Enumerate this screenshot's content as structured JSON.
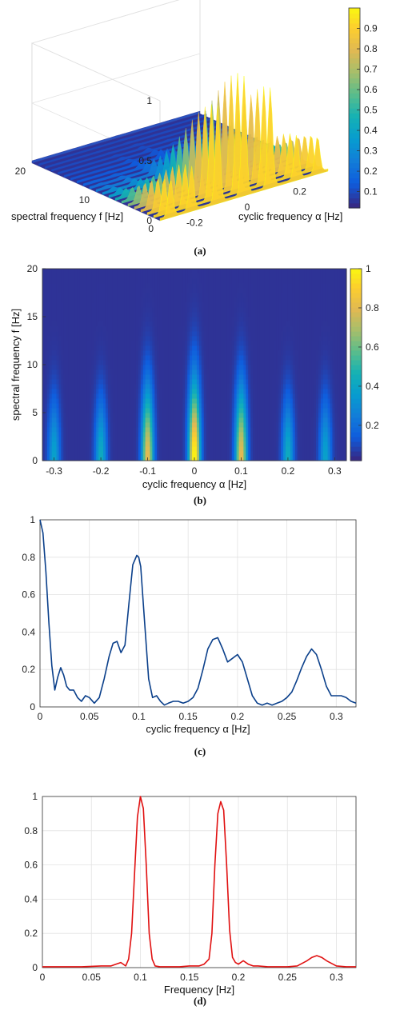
{
  "colors": {
    "curve_c": "#0a3f8a",
    "curve_d": "#e01010",
    "grid": "#e2e2e2",
    "axis": "#333333",
    "parula_low": "#352a87",
    "parula_high": "#f9fb0e"
  },
  "chart_data": [
    {
      "id": "a",
      "type": "surface",
      "caption": "(a)",
      "xlabel": "cyclic frequency α [Hz]",
      "ylabel": "spectral frequency f [Hz]",
      "x_ticks": [
        "-0.2",
        "0",
        "0.2"
      ],
      "y_ticks": [
        "0",
        "10",
        "20"
      ],
      "z_ticks": [
        "0",
        "0.5",
        "1"
      ],
      "xlim": [
        -0.32,
        0.32
      ],
      "ylim": [
        0,
        20
      ],
      "zlim": [
        0,
        1
      ],
      "colorbar_ticks": [
        "0.1",
        "0.2",
        "0.3",
        "0.4",
        "0.5",
        "0.6",
        "0.7",
        "0.8",
        "0.9"
      ],
      "colorbar_range": [
        0.02,
        1.0
      ],
      "ridges": [
        {
          "alpha": -0.28,
          "peak": 0.3,
          "f_extent": 10
        },
        {
          "alpha": -0.2,
          "peak": 0.36,
          "f_extent": 11
        },
        {
          "alpha": -0.1,
          "peak": 0.8,
          "f_extent": 13
        },
        {
          "alpha": 0.0,
          "peak": 1.0,
          "f_extent": 14
        },
        {
          "alpha": 0.1,
          "peak": 0.82,
          "f_extent": 13
        },
        {
          "alpha": 0.2,
          "peak": 0.36,
          "f_extent": 11
        },
        {
          "alpha": 0.28,
          "peak": 0.3,
          "f_extent": 10
        }
      ]
    },
    {
      "id": "b",
      "type": "heatmap",
      "caption": "(b)",
      "xlabel": "cyclic frequency α [Hz]",
      "ylabel": "spectral frequency f [Hz]",
      "x_ticks": [
        "-0.3",
        "-0.2",
        "-0.1",
        "0",
        "0.1",
        "0.2",
        "0.3"
      ],
      "y_ticks": [
        "0",
        "5",
        "10",
        "15",
        "20"
      ],
      "xlim": [
        -0.325,
        0.325
      ],
      "ylim": [
        0,
        20
      ],
      "colorbar_ticks": [
        "0.2",
        "0.4",
        "0.6",
        "0.8",
        "1"
      ],
      "colorbar_range": [
        0.02,
        1.0
      ],
      "ridges": [
        {
          "alpha": -0.3,
          "peak": 0.35,
          "f_extent": 11
        },
        {
          "alpha": -0.2,
          "peak": 0.4,
          "f_extent": 11
        },
        {
          "alpha": -0.1,
          "peak": 0.8,
          "f_extent": 13
        },
        {
          "alpha": 0.0,
          "peak": 1.0,
          "f_extent": 14
        },
        {
          "alpha": 0.1,
          "peak": 0.8,
          "f_extent": 13
        },
        {
          "alpha": 0.2,
          "peak": 0.4,
          "f_extent": 11
        },
        {
          "alpha": 0.28,
          "peak": 0.35,
          "f_extent": 11
        }
      ]
    },
    {
      "id": "c",
      "type": "line",
      "caption": "(c)",
      "xlabel": "cyclic frequency α [Hz]",
      "ylabel": "",
      "x_ticks": [
        "0",
        "0.05",
        "0.1",
        "0.15",
        "0.2",
        "0.25",
        "0.3"
      ],
      "y_ticks": [
        "0",
        "0.2",
        "0.4",
        "0.6",
        "0.8",
        "1"
      ],
      "xlim": [
        0,
        0.32
      ],
      "ylim": [
        0,
        1
      ],
      "grid": true,
      "x": [
        0,
        0.003,
        0.006,
        0.009,
        0.012,
        0.015,
        0.018,
        0.021,
        0.024,
        0.027,
        0.03,
        0.034,
        0.038,
        0.042,
        0.046,
        0.05,
        0.055,
        0.06,
        0.065,
        0.07,
        0.074,
        0.078,
        0.082,
        0.086,
        0.09,
        0.094,
        0.098,
        0.1,
        0.102,
        0.106,
        0.11,
        0.114,
        0.118,
        0.122,
        0.126,
        0.13,
        0.135,
        0.14,
        0.145,
        0.15,
        0.155,
        0.16,
        0.165,
        0.17,
        0.175,
        0.18,
        0.185,
        0.19,
        0.195,
        0.2,
        0.205,
        0.21,
        0.215,
        0.22,
        0.225,
        0.23,
        0.235,
        0.24,
        0.245,
        0.25,
        0.255,
        0.26,
        0.265,
        0.27,
        0.275,
        0.28,
        0.285,
        0.29,
        0.295,
        0.3,
        0.305,
        0.31,
        0.315,
        0.32
      ],
      "y": [
        1.0,
        0.93,
        0.72,
        0.45,
        0.22,
        0.09,
        0.16,
        0.21,
        0.17,
        0.11,
        0.09,
        0.09,
        0.05,
        0.03,
        0.06,
        0.05,
        0.02,
        0.05,
        0.15,
        0.27,
        0.34,
        0.35,
        0.29,
        0.33,
        0.55,
        0.76,
        0.81,
        0.8,
        0.75,
        0.45,
        0.15,
        0.05,
        0.06,
        0.03,
        0.01,
        0.02,
        0.03,
        0.03,
        0.02,
        0.03,
        0.05,
        0.1,
        0.2,
        0.31,
        0.36,
        0.37,
        0.31,
        0.24,
        0.26,
        0.28,
        0.24,
        0.15,
        0.06,
        0.02,
        0.01,
        0.02,
        0.01,
        0.02,
        0.03,
        0.05,
        0.08,
        0.14,
        0.21,
        0.27,
        0.31,
        0.28,
        0.2,
        0.11,
        0.06,
        0.06,
        0.06,
        0.05,
        0.03,
        0.02
      ]
    },
    {
      "id": "d",
      "type": "line",
      "caption": "(d)",
      "xlabel": "Frequency [Hz]",
      "ylabel": "",
      "x_ticks": [
        "0",
        "0.05",
        "0.1",
        "0.15",
        "0.2",
        "0.25",
        "0.3"
      ],
      "y_ticks": [
        "0",
        "0.2",
        "0.4",
        "0.6",
        "0.8",
        "1"
      ],
      "xlim": [
        0,
        0.32
      ],
      "ylim": [
        0,
        1
      ],
      "grid": true,
      "x": [
        0,
        0.02,
        0.04,
        0.06,
        0.07,
        0.075,
        0.08,
        0.085,
        0.088,
        0.091,
        0.094,
        0.097,
        0.1,
        0.103,
        0.106,
        0.109,
        0.112,
        0.115,
        0.12,
        0.13,
        0.14,
        0.15,
        0.16,
        0.165,
        0.17,
        0.173,
        0.176,
        0.179,
        0.182,
        0.185,
        0.188,
        0.191,
        0.194,
        0.197,
        0.2,
        0.205,
        0.21,
        0.215,
        0.22,
        0.23,
        0.24,
        0.25,
        0.26,
        0.27,
        0.275,
        0.28,
        0.285,
        0.29,
        0.3,
        0.31,
        0.32
      ],
      "y": [
        0.005,
        0.005,
        0.005,
        0.01,
        0.01,
        0.02,
        0.03,
        0.01,
        0.05,
        0.2,
        0.55,
        0.88,
        1.0,
        0.93,
        0.6,
        0.2,
        0.05,
        0.01,
        0.005,
        0.005,
        0.005,
        0.01,
        0.01,
        0.02,
        0.05,
        0.2,
        0.6,
        0.9,
        0.97,
        0.92,
        0.6,
        0.22,
        0.06,
        0.03,
        0.02,
        0.04,
        0.02,
        0.01,
        0.01,
        0.005,
        0.005,
        0.005,
        0.01,
        0.04,
        0.06,
        0.07,
        0.06,
        0.04,
        0.01,
        0.005,
        0.005
      ]
    }
  ]
}
